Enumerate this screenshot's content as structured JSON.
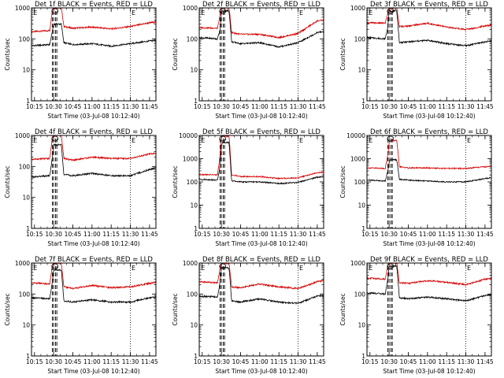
{
  "ylabel": "Counts/sec",
  "xlabel": "Start Time (03-Jul-08 10:12:40)",
  "x_ticks": [
    "10:15",
    "10:30",
    "10:45",
    "11:00",
    "11:15",
    "11:30",
    "11:45"
  ],
  "markers": [
    "E",
    "E"
  ],
  "chart_data": [
    {
      "type": "line",
      "title": "Det 1f BLACK = Events, RED = LLD",
      "ylim": [
        1,
        1000
      ],
      "yscale": "log",
      "y_ticks": [
        "1",
        "10",
        "100",
        "1000"
      ],
      "x": [
        "10:12:40",
        "10:27",
        "10:29",
        "10:30",
        "10:31",
        "10:33",
        "10:34",
        "10:36",
        "10:38",
        "10:45",
        "11:00",
        "11:15",
        "11:30",
        "11:45",
        "11:50"
      ],
      "series": [
        {
          "color": "#d40000",
          "values": [
            170,
            185,
            900,
            1000,
            1000,
            1000,
            1000,
            1000,
            250,
            220,
            240,
            210,
            250,
            330,
            350
          ]
        },
        {
          "color": "#000000",
          "values": [
            60,
            65,
            180,
            300,
            300,
            300,
            300,
            300,
            75,
            65,
            70,
            58,
            70,
            85,
            90
          ]
        }
      ]
    },
    {
      "type": "line",
      "title": "Det 2f BLACK = Events, RED = LLD",
      "ylim": [
        1,
        1000
      ],
      "yscale": "log",
      "y_ticks": [
        "1",
        "10",
        "100",
        "1000"
      ],
      "x": [
        "10:12:40",
        "10:27",
        "10:29",
        "10:30",
        "10:31",
        "10:33",
        "10:34",
        "10:36",
        "10:38",
        "10:45",
        "11:00",
        "11:15",
        "11:30",
        "11:45",
        "11:50"
      ],
      "series": [
        {
          "color": "#d40000",
          "values": [
            230,
            220,
            600,
            1000,
            1000,
            1000,
            1000,
            1000,
            160,
            140,
            140,
            110,
            150,
            380,
            400
          ]
        },
        {
          "color": "#000000",
          "values": [
            110,
            100,
            200,
            700,
            800,
            800,
            800,
            800,
            80,
            70,
            75,
            55,
            75,
            160,
            170
          ]
        }
      ]
    },
    {
      "type": "line",
      "title": "Det 3f BLACK = Events, RED = LLD",
      "ylim": [
        1,
        1000
      ],
      "yscale": "log",
      "y_ticks": [
        "1",
        "10",
        "100",
        "1000"
      ],
      "x": [
        "10:12:40",
        "10:27",
        "10:29",
        "10:30",
        "10:31",
        "10:33",
        "10:34",
        "10:36",
        "10:38",
        "10:45",
        "11:00",
        "11:15",
        "11:30",
        "11:45",
        "11:50"
      ],
      "series": [
        {
          "color": "#d40000",
          "values": [
            330,
            320,
            700,
            1000,
            1000,
            1000,
            1000,
            1000,
            250,
            260,
            320,
            240,
            200,
            260,
            280
          ]
        },
        {
          "color": "#000000",
          "values": [
            110,
            100,
            250,
            800,
            800,
            800,
            800,
            800,
            75,
            80,
            90,
            70,
            60,
            80,
            85
          ]
        }
      ]
    },
    {
      "type": "line",
      "title": "Det 4f BLACK = Events, RED = LLD",
      "ylim": [
        1,
        1000
      ],
      "yscale": "log",
      "y_ticks": [
        "1",
        "10",
        "100",
        "1000"
      ],
      "x": [
        "10:12:40",
        "10:27",
        "10:29",
        "10:30",
        "10:31",
        "10:33",
        "10:34",
        "10:36",
        "10:38",
        "10:45",
        "11:00",
        "11:15",
        "11:30",
        "11:45",
        "11:50"
      ],
      "series": [
        {
          "color": "#d40000",
          "values": [
            170,
            180,
            900,
            1000,
            1000,
            1000,
            1000,
            1000,
            180,
            160,
            200,
            180,
            180,
            250,
            270
          ]
        },
        {
          "color": "#000000",
          "values": [
            45,
            50,
            200,
            500,
            500,
            500,
            500,
            500,
            55,
            50,
            60,
            50,
            50,
            80,
            90
          ]
        }
      ]
    },
    {
      "type": "line",
      "title": "Det 5f BLACK = Events, RED = LLD",
      "ylim": [
        1,
        10000
      ],
      "yscale": "log",
      "y_ticks": [
        "1",
        "10",
        "100",
        "1000",
        "10000"
      ],
      "x": [
        "10:12:40",
        "10:27",
        "10:29",
        "10:30",
        "10:31",
        "10:33",
        "10:34",
        "10:36",
        "10:38",
        "10:45",
        "11:00",
        "11:15",
        "11:30",
        "11:45",
        "11:50"
      ],
      "series": [
        {
          "color": "#d40000",
          "values": [
            210,
            200,
            1500,
            8000,
            9500,
            9500,
            9500,
            9500,
            200,
            170,
            170,
            140,
            150,
            250,
            260
          ]
        },
        {
          "color": "#000000",
          "values": [
            130,
            120,
            500,
            3500,
            5000,
            5000,
            5000,
            5000,
            110,
            100,
            100,
            85,
            95,
            160,
            170
          ]
        }
      ]
    },
    {
      "type": "line",
      "title": "Det 6f BLACK = Events, RED = LLD",
      "ylim": [
        1,
        10000
      ],
      "yscale": "log",
      "y_ticks": [
        "1",
        "10",
        "100",
        "1000",
        "10000"
      ],
      "x": [
        "10:12:40",
        "10:27",
        "10:29",
        "10:30",
        "10:31",
        "10:33",
        "10:34",
        "10:36",
        "10:38",
        "10:45",
        "11:00",
        "11:15",
        "11:30",
        "11:45",
        "11:50"
      ],
      "series": [
        {
          "color": "#d40000",
          "values": [
            400,
            380,
            1500,
            5000,
            6000,
            6000,
            6000,
            6000,
            450,
            400,
            400,
            380,
            380,
            450,
            470
          ]
        },
        {
          "color": "#000000",
          "values": [
            120,
            110,
            300,
            700,
            900,
            900,
            900,
            900,
            130,
            120,
            110,
            100,
            100,
            140,
            150
          ]
        }
      ]
    },
    {
      "type": "line",
      "title": "Det 7f BLACK = Events, RED = LLD",
      "ylim": [
        1,
        1000
      ],
      "yscale": "log",
      "y_ticks": [
        "1",
        "10",
        "100",
        "1000"
      ],
      "x": [
        "10:12:40",
        "10:27",
        "10:29",
        "10:30",
        "10:31",
        "10:33",
        "10:34",
        "10:36",
        "10:38",
        "10:45",
        "11:00",
        "11:15",
        "11:30",
        "11:45",
        "11:50"
      ],
      "series": [
        {
          "color": "#d40000",
          "values": [
            230,
            210,
            900,
            1000,
            1000,
            1000,
            1000,
            1000,
            170,
            150,
            190,
            160,
            170,
            220,
            240
          ]
        },
        {
          "color": "#000000",
          "values": [
            75,
            70,
            250,
            600,
            600,
            600,
            600,
            600,
            60,
            55,
            65,
            55,
            55,
            75,
            80
          ]
        }
      ]
    },
    {
      "type": "line",
      "title": "Det 8f BLACK = Events, RED = LLD",
      "ylim": [
        1,
        1000
      ],
      "yscale": "log",
      "y_ticks": [
        "1",
        "10",
        "100",
        "1000"
      ],
      "x": [
        "10:12:40",
        "10:27",
        "10:29",
        "10:30",
        "10:31",
        "10:33",
        "10:34",
        "10:36",
        "10:38",
        "10:45",
        "11:00",
        "11:15",
        "11:30",
        "11:45",
        "11:50"
      ],
      "series": [
        {
          "color": "#d40000",
          "values": [
            250,
            230,
            700,
            1000,
            1000,
            1000,
            1000,
            1000,
            170,
            160,
            210,
            170,
            150,
            250,
            270
          ]
        },
        {
          "color": "#000000",
          "values": [
            85,
            80,
            250,
            700,
            700,
            700,
            700,
            700,
            60,
            55,
            70,
            55,
            50,
            85,
            90
          ]
        }
      ]
    },
    {
      "type": "line",
      "title": "Det 9f BLACK = Events, RED = LLD",
      "ylim": [
        1,
        1000
      ],
      "yscale": "log",
      "y_ticks": [
        "1",
        "10",
        "100",
        "1000"
      ],
      "x": [
        "10:12:40",
        "10:27",
        "10:29",
        "10:30",
        "10:31",
        "10:33",
        "10:34",
        "10:36",
        "10:38",
        "10:45",
        "11:00",
        "11:15",
        "11:30",
        "11:45",
        "11:50"
      ],
      "series": [
        {
          "color": "#d40000",
          "values": [
            330,
            300,
            900,
            1000,
            1000,
            1000,
            1000,
            1000,
            230,
            220,
            270,
            240,
            200,
            300,
            320
          ]
        },
        {
          "color": "#000000",
          "values": [
            110,
            100,
            300,
            800,
            800,
            800,
            800,
            800,
            75,
            70,
            80,
            70,
            60,
            90,
            95
          ]
        }
      ]
    }
  ]
}
